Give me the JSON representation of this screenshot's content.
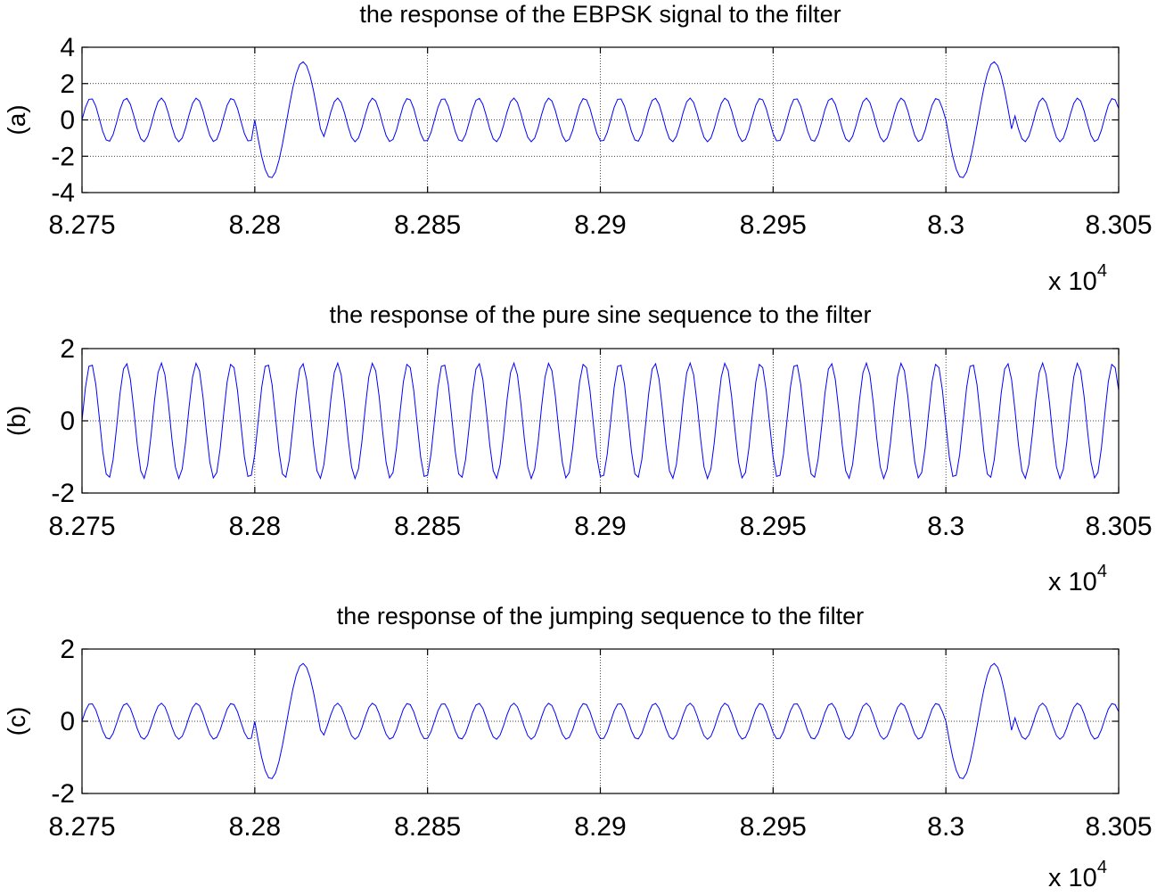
{
  "chart_data": [
    {
      "type": "line",
      "title": "the response of the EBPSK signal to the filter",
      "ylabel": "(a)",
      "xlabel": "",
      "x_exponent_label": "x 10",
      "x_exponent_power": "4",
      "xlim": [
        8.275,
        8.305
      ],
      "ylim": [
        -4,
        4
      ],
      "xticks": [
        8.275,
        8.28,
        8.285,
        8.29,
        8.295,
        8.3,
        8.305
      ],
      "xtick_labels": [
        "8.275",
        "8.28",
        "8.285",
        "8.29",
        "8.295",
        "8.3",
        "8.305"
      ],
      "yticks": [
        -4,
        -2,
        0,
        2,
        4
      ],
      "ytick_labels": [
        "-4",
        "-2",
        "0",
        "2",
        "4"
      ],
      "grid": true,
      "color": "#0000ff",
      "series": [
        {
          "period": 0.00102,
          "base_amplitude": 1.2,
          "burst_amplitude": 3.2,
          "bursts": [
            [
              8.28,
              8.2819
            ],
            [
              8.3,
              8.3019
            ]
          ],
          "burst_phase_flip": true,
          "samples": 300
        }
      ]
    },
    {
      "type": "line",
      "title": "the response of the pure sine sequence to the filter",
      "ylabel": "(b)",
      "xlabel": "",
      "x_exponent_label": "x 10",
      "x_exponent_power": "4",
      "xlim": [
        8.275,
        8.305
      ],
      "ylim": [
        -2,
        2
      ],
      "xticks": [
        8.275,
        8.28,
        8.285,
        8.29,
        8.295,
        8.3,
        8.305
      ],
      "xtick_labels": [
        "8.275",
        "8.28",
        "8.285",
        "8.29",
        "8.295",
        "8.3",
        "8.305"
      ],
      "yticks": [
        -2,
        0,
        2
      ],
      "ytick_labels": [
        "-2",
        "0",
        "2"
      ],
      "grid": true,
      "color": "#0000ff",
      "series": [
        {
          "period": 0.00102,
          "base_amplitude": 1.6,
          "burst_amplitude": 1.6,
          "bursts": [],
          "burst_phase_flip": false,
          "samples": 300
        }
      ]
    },
    {
      "type": "line",
      "title": "the response of the jumping sequence to the filter",
      "ylabel": "(c)",
      "xlabel": "",
      "x_exponent_label": "x 10",
      "x_exponent_power": "4",
      "xlim": [
        8.275,
        8.305
      ],
      "ylim": [
        -2,
        2
      ],
      "xticks": [
        8.275,
        8.28,
        8.285,
        8.29,
        8.295,
        8.3,
        8.305
      ],
      "xtick_labels": [
        "8.275",
        "8.28",
        "8.285",
        "8.29",
        "8.295",
        "8.3",
        "8.305"
      ],
      "yticks": [
        -2,
        0,
        2
      ],
      "ytick_labels": [
        "-2",
        "0",
        "2"
      ],
      "grid": true,
      "color": "#0000ff",
      "series": [
        {
          "period": 0.00102,
          "base_amplitude": 0.5,
          "burst_amplitude": 1.6,
          "bursts": [
            [
              8.28,
              8.2819
            ],
            [
              8.3,
              8.3019
            ]
          ],
          "burst_phase_flip": true,
          "samples": 300
        }
      ]
    }
  ]
}
